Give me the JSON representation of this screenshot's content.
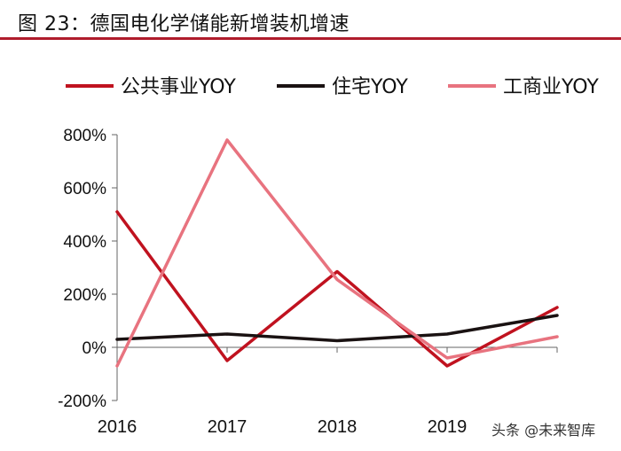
{
  "header": {
    "title": "图 23：德国电化学储能新增装机增速"
  },
  "watermark": "头条 @未来智库",
  "chart_data": {
    "type": "line",
    "categories": [
      "2016",
      "2017",
      "2018",
      "2019",
      ""
    ],
    "ylim": [
      -200,
      800
    ],
    "yticks": [
      -200,
      0,
      200,
      400,
      600,
      800
    ],
    "ytick_labels": [
      "-200%",
      "0%",
      "200%",
      "400%",
      "600%",
      "800%"
    ],
    "xlabel": "",
    "ylabel": "",
    "legend_position": "top",
    "series": [
      {
        "name": "公共事业YOY",
        "color": "#c0121f",
        "values": [
          510,
          -50,
          285,
          -70,
          150
        ]
      },
      {
        "name": "住宅YOY",
        "color": "#1a1212",
        "values": [
          30,
          50,
          25,
          50,
          120
        ]
      },
      {
        "name": "工商业YOY",
        "color": "#e8737f",
        "values": [
          -70,
          780,
          255,
          -40,
          40
        ]
      }
    ]
  }
}
